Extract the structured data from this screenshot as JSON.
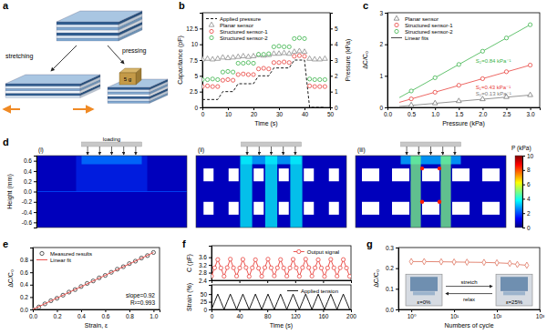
{
  "chart_data": [
    {
      "panel": "a",
      "type": "diagram",
      "labels": [
        "stretching",
        "pressing"
      ],
      "weight": "5 g"
    },
    {
      "panel": "b",
      "type": "line",
      "x_label": "Time (s)",
      "y_label": "Capacitance (pF)",
      "y2_label": "Pressure (kPa)",
      "xlim": [
        0,
        50
      ],
      "xticks": [
        0,
        10,
        20,
        30,
        40,
        50
      ],
      "ylim": [
        0,
        15
      ],
      "yticks": [
        0,
        2.5,
        5,
        7.5,
        10,
        12.5
      ],
      "y2lim": [
        0,
        6
      ],
      "y2ticks": [
        0,
        1,
        2,
        3,
        4,
        5
      ],
      "legend": "upper left",
      "x": [
        0,
        2,
        4,
        6,
        8,
        10,
        12,
        14,
        16,
        18,
        20,
        22,
        24,
        26,
        28,
        30,
        32,
        34,
        36,
        38,
        40,
        42,
        44,
        46,
        48
      ],
      "series": [
        {
          "name": "Applied pressure",
          "color": "#000000",
          "line_style": "dashed",
          "marker": "none",
          "axis": "y2",
          "values": [
            0.5,
            0.5,
            0.5,
            0.5,
            1.0,
            1.0,
            1.0,
            1.5,
            1.5,
            1.5,
            1.5,
            2.0,
            2.0,
            2.0,
            2.5,
            2.5,
            2.5,
            2.5,
            3.0,
            3.0,
            3.0,
            0,
            0,
            0,
            0
          ]
        },
        {
          "name": "Planar sensor",
          "color": "#8c8c8c",
          "line_style": "none",
          "marker": "triangle",
          "values": [
            7.6,
            7.7,
            7.6,
            7.7,
            7.9,
            7.8,
            7.9,
            8.0,
            8.1,
            8.0,
            8.1,
            8.3,
            8.2,
            8.3,
            8.5,
            8.5,
            8.6,
            8.5,
            8.8,
            8.9,
            8.8,
            7.7,
            7.6,
            7.6,
            7.7
          ]
        },
        {
          "name": "Structured sensor-1",
          "color": "#e8413c",
          "line_style": "none",
          "marker": "circle",
          "values": [
            3.3,
            3.4,
            3.3,
            3.3,
            4.3,
            4.4,
            4.3,
            5.2,
            5.3,
            5.2,
            5.2,
            6.1,
            6.2,
            6.1,
            7.1,
            7.1,
            7.2,
            7.1,
            8.1,
            8.2,
            8.1,
            3.4,
            3.3,
            3.3,
            3.3
          ]
        },
        {
          "name": "Structured sensor-2",
          "color": "#3cb44b",
          "line_style": "none",
          "marker": "circle",
          "values": [
            4.4,
            4.4,
            4.5,
            4.4,
            5.6,
            5.7,
            5.6,
            7.0,
            7.0,
            7.1,
            7.0,
            8.4,
            8.4,
            8.5,
            9.6,
            9.7,
            9.6,
            9.6,
            10.9,
            11.0,
            10.9,
            4.5,
            4.4,
            4.4,
            4.4
          ]
        }
      ]
    },
    {
      "panel": "c",
      "type": "scatter",
      "x_label": "Pressure (kPa)",
      "y_label": "ΔC/C₀",
      "xlim": [
        0,
        3.2
      ],
      "xticks": [
        {
          "value": 0,
          "label": "0.0"
        },
        0.5,
        {
          "value": 1,
          "label": "1.0"
        },
        1.5,
        {
          "value": 2,
          "label": "2.0"
        },
        2.5,
        {
          "value": 3,
          "label": "3.0"
        }
      ],
      "ylim": [
        0,
        3
      ],
      "yticks": [
        0,
        1,
        2,
        3
      ],
      "legend": "upper left",
      "x": [
        0.5,
        1.0,
        1.5,
        2.0,
        2.5,
        3.0
      ],
      "fit_x": [
        0.25,
        3.0
      ],
      "fit_name": "Linear fits",
      "series": [
        {
          "name": "Planar sensor",
          "color": "#7a7a7a",
          "marker": "triangle",
          "values": [
            0.07,
            0.13,
            0.2,
            0.26,
            0.33,
            0.39
          ],
          "fit": [
            0.03,
            0.39
          ],
          "slope_label": "S₀=0.13 kPa⁻¹"
        },
        {
          "name": "Structured sensor-1",
          "color": "#e8413c",
          "marker": "circle",
          "values": [
            0.27,
            0.48,
            0.7,
            0.91,
            1.13,
            1.34
          ],
          "fit": [
            0.16,
            1.34
          ],
          "slope_label": "S₁=0.43 kPa⁻¹"
        },
        {
          "name": "Structured sensor-2",
          "color": "#3cb44b",
          "marker": "circle",
          "values": [
            0.52,
            0.94,
            1.36,
            1.78,
            2.2,
            2.62
          ],
          "fit": [
            0.31,
            2.62
          ],
          "slope_label": "S₂=0.84 kPa⁻¹"
        }
      ]
    },
    {
      "panel": "d",
      "type": "contour_map",
      "subpanels": [
        "(i)",
        "(ii)",
        "(iii)"
      ],
      "annotation": "loading",
      "y_label": "Height (mm)",
      "ylim": [
        -0.7,
        0.7
      ],
      "yticks": [
        -0.6,
        -0.4,
        -0.2,
        {
          "value": 0,
          "label": "0.0"
        },
        0.2,
        0.4,
        0.6
      ],
      "colorbar": {
        "label": "P (kPa)",
        "range": [
          0,
          10
        ],
        "ticks": [
          0,
          2,
          4,
          6,
          8,
          10
        ]
      }
    },
    {
      "panel": "e",
      "type": "scatter",
      "x_label": "Strain, ε",
      "y_label": "ΔC/C₀",
      "xlim": [
        0,
        1.05
      ],
      "xticks": [
        {
          "value": 0,
          "label": "0.0"
        },
        0.2,
        0.4,
        0.6,
        0.8,
        {
          "value": 1,
          "label": "1.0"
        }
      ],
      "ylim": [
        0,
        1.0
      ],
      "yticks": [
        {
          "value": 0,
          "label": "0.0"
        },
        0.2,
        0.4,
        0.6,
        0.8
      ],
      "legend": "upper left",
      "annotations": [
        "slope=0.92",
        "R²=0.993"
      ],
      "series": [
        {
          "name": "Measured results",
          "type": "scatter",
          "color": "#333333",
          "marker": "circle",
          "x": [
            0,
            0.05,
            0.1,
            0.15,
            0.2,
            0.25,
            0.3,
            0.35,
            0.4,
            0.45,
            0.5,
            0.55,
            0.6,
            0.65,
            0.7,
            0.75,
            0.8,
            0.85,
            0.9,
            0.95,
            1.0
          ],
          "values": [
            0,
            0.04,
            0.09,
            0.14,
            0.18,
            0.23,
            0.28,
            0.32,
            0.37,
            0.42,
            0.46,
            0.51,
            0.55,
            0.6,
            0.65,
            0.69,
            0.74,
            0.78,
            0.83,
            0.87,
            0.92
          ]
        },
        {
          "name": "Linear fit",
          "type": "line",
          "color": "#e8413c",
          "line_style": "solid",
          "marker": "none",
          "x": [
            0,
            1
          ],
          "values": [
            0,
            0.92
          ]
        }
      ]
    },
    {
      "panel": "f",
      "type": "line",
      "y_label": "C (pF)",
      "tick_labels": "y",
      "xlim": [
        0,
        200
      ],
      "xticks": [
        0,
        40,
        80,
        120,
        160,
        200
      ],
      "ylim": [
        2.4,
        4.2
      ],
      "yticks": [
        2.4,
        2.8,
        3.2,
        3.6
      ],
      "legend": "upper right",
      "x": [
        0,
        4.5,
        9,
        13.5,
        18,
        22.5,
        27,
        31.5,
        36,
        40.5,
        45,
        49.5,
        54,
        58.5,
        63,
        67.5,
        72,
        76.5,
        81,
        85.5,
        90,
        94.5,
        99,
        103.5,
        108,
        112.5,
        117,
        121.5,
        126,
        130.5,
        135,
        139.5,
        144,
        148.5,
        153,
        157.5,
        162,
        166.5,
        171,
        175.5,
        180,
        184.5,
        189,
        193.5,
        198
      ],
      "series": [
        {
          "name": "Output signal",
          "color": "#e8413c",
          "marker": "circle",
          "line_style": "solid",
          "values": [
            2.62,
            3.05,
            3.48,
            3.04,
            2.61,
            3.06,
            3.5,
            3.05,
            2.62,
            3.04,
            3.49,
            3.06,
            2.6,
            3.05,
            3.47,
            3.03,
            2.61,
            3.06,
            3.5,
            3.05,
            2.63,
            3.05,
            3.48,
            3.04,
            2.62,
            3.04,
            3.49,
            3.05,
            2.61,
            3.06,
            3.5,
            3.06,
            2.62,
            3.05,
            3.47,
            3.04,
            2.6,
            3.04,
            3.49,
            3.05,
            2.62,
            3.05,
            3.48,
            3.04,
            2.61
          ]
        }
      ]
    },
    {
      "type": "line",
      "x_label": "Time (s)",
      "y_label": "Strain (%)",
      "xlim": [
        0,
        200
      ],
      "xticks": [
        0,
        40,
        80,
        120,
        160,
        200
      ],
      "ylim": [
        0,
        80
      ],
      "yticks": [
        0,
        25,
        50
      ],
      "legend": "upper right",
      "x": [
        0,
        4.5,
        9,
        13.5,
        18,
        22.5,
        27,
        31.5,
        36,
        40.5,
        45,
        49.5,
        54,
        58.5,
        63,
        67.5,
        72,
        76.5,
        81,
        85.5,
        90,
        94.5,
        99,
        103.5,
        108,
        112.5,
        117,
        121.5,
        126,
        130.5,
        135,
        139.5,
        144,
        148.5,
        153,
        157.5,
        162,
        166.5,
        171,
        175.5,
        180,
        184.5,
        189,
        193.5,
        198
      ],
      "series": [
        {
          "name": "Applied tension",
          "color": "#000000",
          "marker": "none",
          "line_style": "solid",
          "values": [
            0,
            25,
            50,
            25,
            0,
            25,
            50,
            25,
            0,
            25,
            50,
            25,
            0,
            25,
            50,
            25,
            0,
            25,
            50,
            25,
            0,
            25,
            50,
            25,
            0,
            25,
            50,
            25,
            0,
            25,
            50,
            25,
            0,
            25,
            50,
            25,
            0,
            25,
            50,
            25,
            0,
            25,
            50,
            25,
            0
          ]
        }
      ]
    },
    {
      "panel": "g",
      "type": "scatter",
      "log": "x",
      "x_label": "Numbers of cycle",
      "y_label": "ΔC/C₀",
      "xlim": [
        0.5,
        1000
      ],
      "xticks": [
        {
          "value": 1,
          "label": "10⁰"
        },
        {
          "value": 10,
          "label": "10¹"
        },
        {
          "value": 100,
          "label": "10²"
        },
        {
          "value": 1000,
          "label": "10³"
        }
      ],
      "ylim": [
        0,
        0.3
      ],
      "yticks": [
        {
          "value": 0,
          "label": "0.0"
        },
        0.1,
        0.2,
        0.3
      ],
      "insets": [
        "stretch",
        "relax",
        "ε=0%",
        "ε=25%"
      ],
      "x": [
        1,
        2,
        5,
        10,
        20,
        50,
        100,
        200,
        300,
        500
      ],
      "series": [
        {
          "color": "#e07a66",
          "marker": "diamond",
          "line_style": "solid",
          "values": [
            0.232,
            0.232,
            0.231,
            0.23,
            0.229,
            0.228,
            0.226,
            0.223,
            0.218,
            0.214
          ]
        }
      ]
    }
  ]
}
